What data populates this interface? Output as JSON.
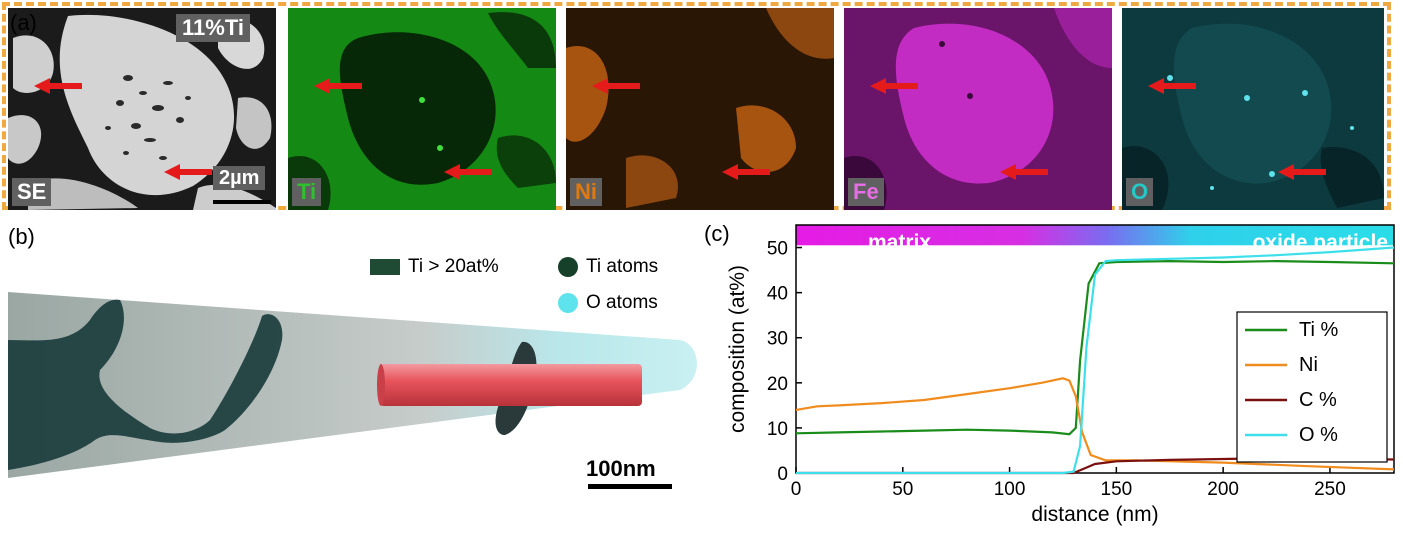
{
  "panel_a": {
    "letter": "(a)",
    "composition_tag": "11%Ti",
    "scale_bar": "2µm",
    "tiles": [
      {
        "label": "SE",
        "color": "#ffffff"
      },
      {
        "label": "Ti",
        "color": "#2fbf2f"
      },
      {
        "label": "Ni",
        "color": "#e07a10"
      },
      {
        "label": "Fe",
        "color": "#d22fd2"
      },
      {
        "label": "O",
        "color": "#27c7c7"
      }
    ],
    "arrow_color": "#e51b1b"
  },
  "panel_b": {
    "letter": "(b)",
    "legend": {
      "ti_iso": "Ti > 20at%",
      "ti_atoms": "Ti atoms",
      "o_atoms": "O atoms"
    },
    "colors": {
      "ti_iso": "#1f4a34",
      "ti_atoms": "#16402a",
      "o_atoms": "#5ee3ec",
      "cylinder": "#e8545c"
    },
    "scale_bar": "100nm"
  },
  "panel_c": {
    "letter": "(c)",
    "band_left": "matrix",
    "band_right": "oxide particle"
  },
  "chart_data": {
    "type": "line",
    "xlabel": "distance (nm)",
    "ylabel": "composition (at%)",
    "xlim": [
      0,
      280
    ],
    "ylim": [
      0,
      55
    ],
    "xticks": [
      0,
      50,
      100,
      150,
      200,
      250
    ],
    "yticks": [
      0,
      10,
      20,
      30,
      40,
      50
    ],
    "legend_position": "right",
    "series": [
      {
        "name": "Ti %",
        "color": "#1a8c1a",
        "x": [
          0,
          20,
          40,
          60,
          80,
          100,
          120,
          128,
          131,
          133,
          137,
          142,
          150,
          175,
          200,
          225,
          250,
          280
        ],
        "y": [
          8.8,
          9.0,
          9.2,
          9.4,
          9.6,
          9.4,
          9.0,
          8.6,
          10,
          25,
          42,
          46.5,
          46.8,
          47,
          46.8,
          47,
          46.8,
          46.5
        ]
      },
      {
        "name": "Ni",
        "color": "#f08c1e",
        "x": [
          0,
          10,
          20,
          40,
          60,
          80,
          100,
          115,
          125,
          128,
          131,
          134,
          138,
          145,
          160,
          200,
          240,
          280
        ],
        "y": [
          14,
          14.8,
          15,
          15.5,
          16.2,
          17.5,
          18.8,
          20,
          21,
          20.5,
          17,
          9,
          4,
          2.8,
          2.8,
          2.3,
          1.5,
          0.8
        ]
      },
      {
        "name": "C %",
        "color": "#7a1010",
        "x": [
          0,
          125,
          130,
          134,
          140,
          150,
          175,
          200,
          225,
          250,
          280
        ],
        "y": [
          0,
          0,
          0,
          0.8,
          2,
          2.6,
          2.9,
          3.1,
          3.3,
          3.2,
          3.0
        ]
      },
      {
        "name": "O %",
        "color": "#3de0ea",
        "x": [
          0,
          125,
          130,
          133,
          136,
          140,
          145,
          150,
          175,
          200,
          225,
          250,
          280
        ],
        "y": [
          0,
          0,
          0.3,
          6,
          28,
          44,
          47,
          47.2,
          47.5,
          47.8,
          48.3,
          49,
          50
        ]
      }
    ]
  }
}
